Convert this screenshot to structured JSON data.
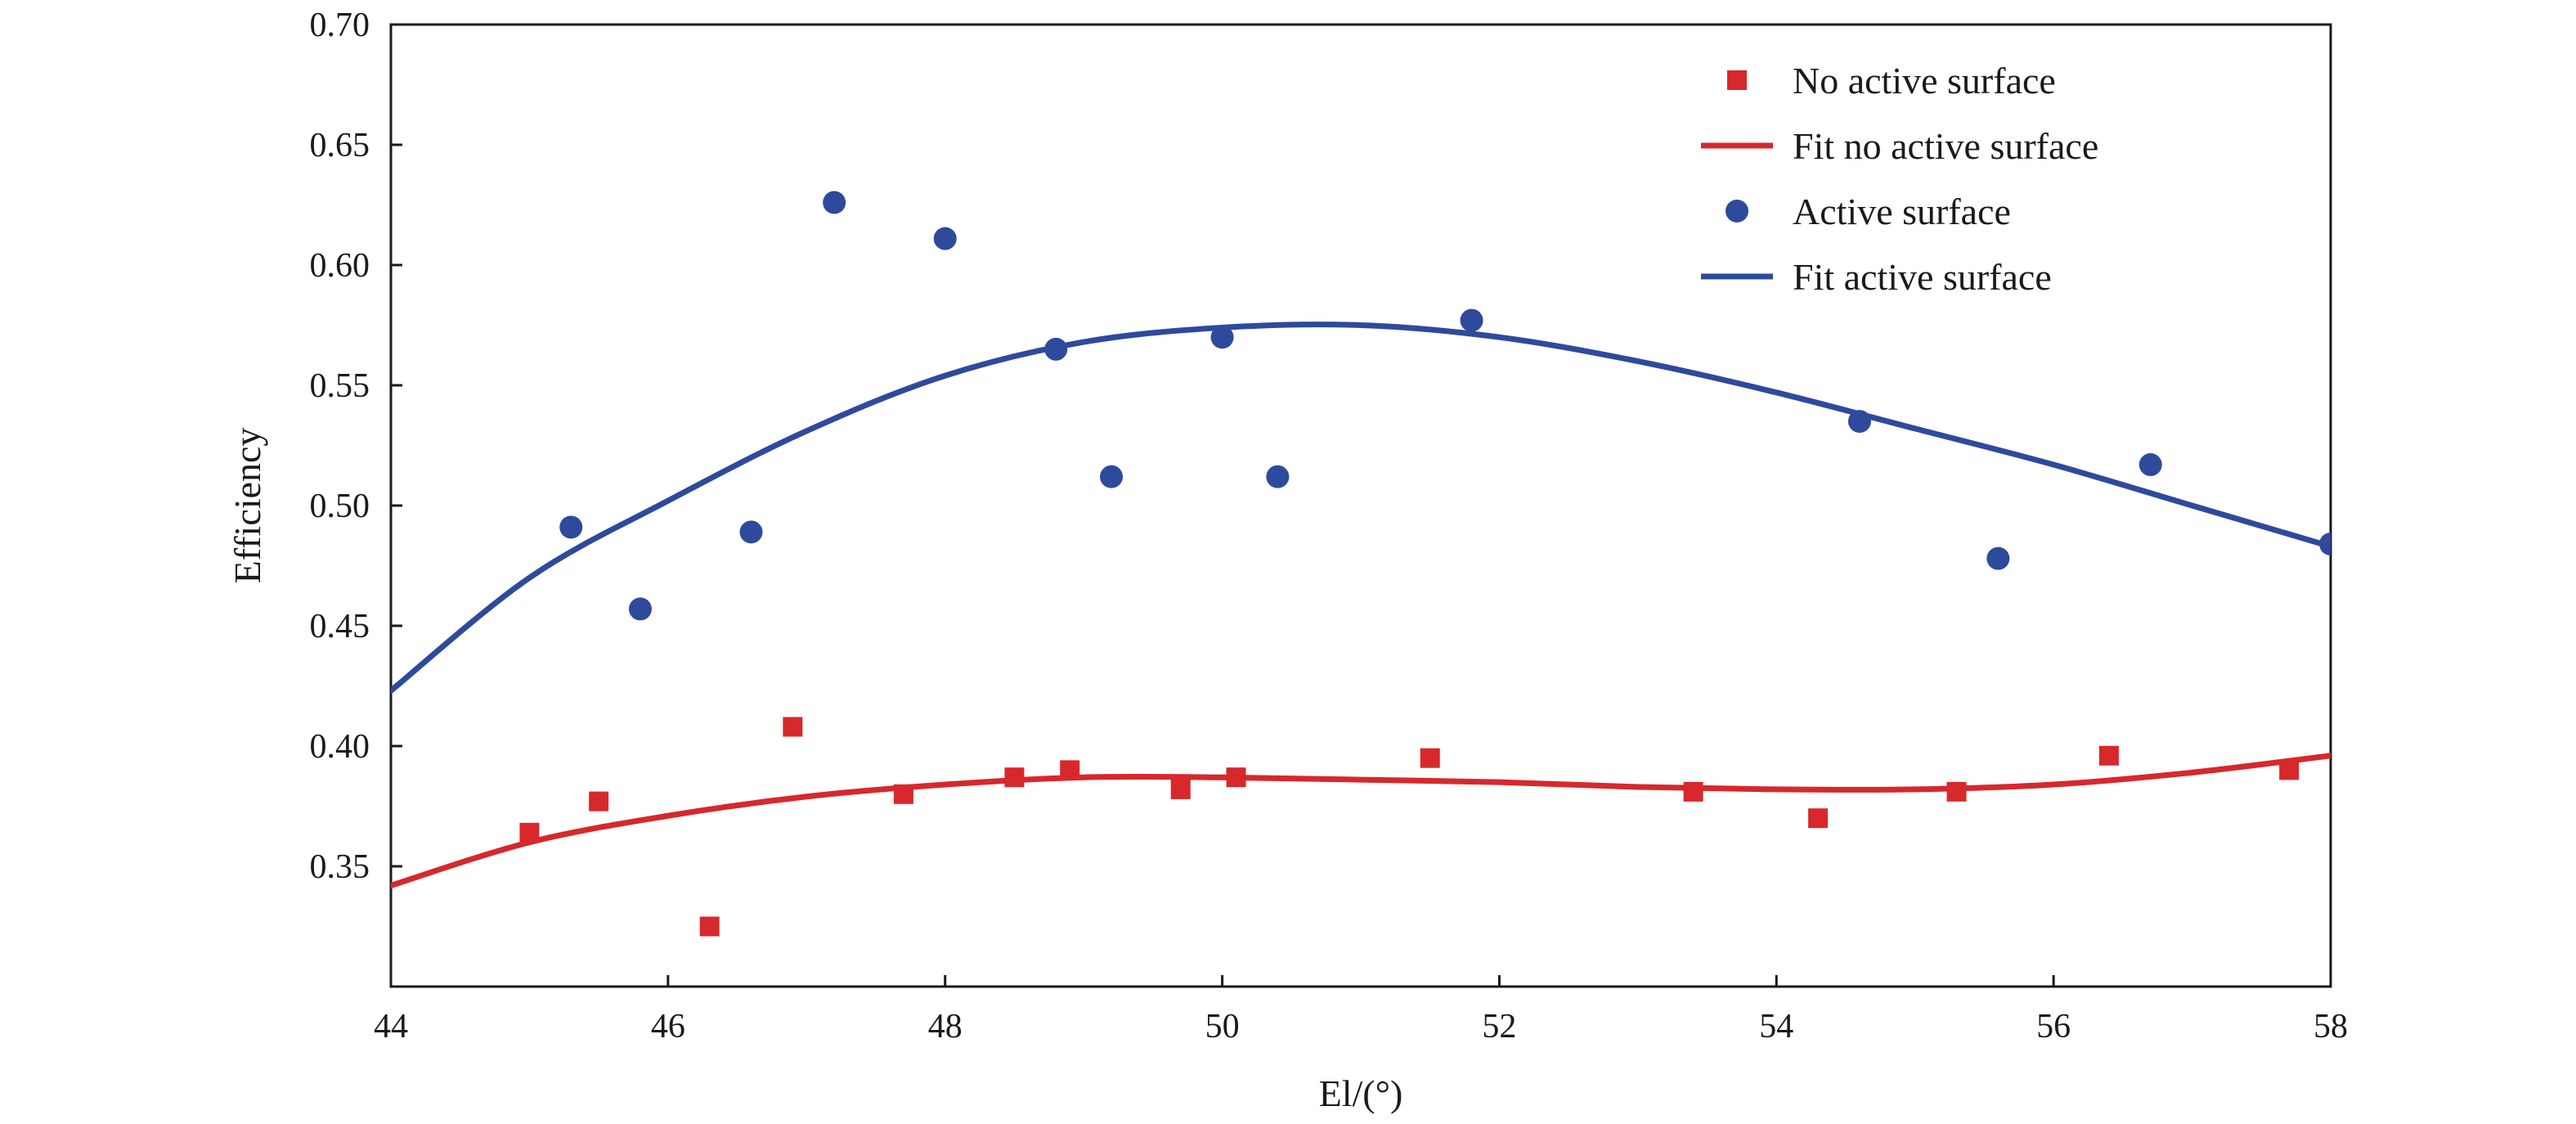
{
  "chart_data": {
    "type": "scatter",
    "xlabel": "El/(°)",
    "ylabel": "Efficiency",
    "xlim": [
      44,
      58
    ],
    "ylim": [
      0.3,
      0.7
    ],
    "x_ticks": [
      44,
      46,
      48,
      50,
      52,
      54,
      56,
      58
    ],
    "y_ticks": [
      0.35,
      0.4,
      0.45,
      0.5,
      0.55,
      0.6,
      0.65,
      0.7
    ],
    "x_tick_labels": [
      "44",
      "46",
      "48",
      "50",
      "52",
      "54",
      "56",
      "58"
    ],
    "y_tick_labels": [
      "0.35",
      "0.40",
      "0.45",
      "0.50",
      "0.55",
      "0.60",
      "0.65",
      "0.70"
    ],
    "grid": false,
    "legend_position": "top-right",
    "series": [
      {
        "name": "No active surface",
        "kind": "scatter",
        "marker": "square",
        "color": "#d7282c",
        "points": [
          [
            45.0,
            0.364
          ],
          [
            45.5,
            0.377
          ],
          [
            46.3,
            0.325
          ],
          [
            46.9,
            0.408
          ],
          [
            47.7,
            0.38
          ],
          [
            48.5,
            0.387
          ],
          [
            48.9,
            0.39
          ],
          [
            49.7,
            0.382
          ],
          [
            50.1,
            0.387
          ],
          [
            51.5,
            0.395
          ],
          [
            53.4,
            0.381
          ],
          [
            54.3,
            0.37
          ],
          [
            55.3,
            0.381
          ],
          [
            56.4,
            0.396
          ],
          [
            57.7,
            0.39
          ]
        ]
      },
      {
        "name": "Fit no active surface",
        "kind": "line",
        "color": "#d7282c",
        "points": [
          [
            44,
            0.342
          ],
          [
            45,
            0.36
          ],
          [
            46,
            0.371
          ],
          [
            47,
            0.379
          ],
          [
            48,
            0.384
          ],
          [
            49,
            0.387
          ],
          [
            50,
            0.387
          ],
          [
            51,
            0.386
          ],
          [
            52,
            0.385
          ],
          [
            53,
            0.383
          ],
          [
            54,
            0.382
          ],
          [
            55,
            0.382
          ],
          [
            56,
            0.384
          ],
          [
            57,
            0.389
          ],
          [
            58,
            0.396
          ]
        ]
      },
      {
        "name": "Active surface",
        "kind": "scatter",
        "marker": "circle",
        "color": "#2e4a9c",
        "points": [
          [
            45.3,
            0.491
          ],
          [
            45.8,
            0.457
          ],
          [
            46.6,
            0.489
          ],
          [
            47.2,
            0.626
          ],
          [
            48.0,
            0.611
          ],
          [
            48.8,
            0.565
          ],
          [
            49.2,
            0.512
          ],
          [
            50.0,
            0.57
          ],
          [
            50.4,
            0.512
          ],
          [
            51.8,
            0.577
          ],
          [
            54.6,
            0.535
          ],
          [
            55.6,
            0.478
          ],
          [
            56.7,
            0.517
          ],
          [
            58.0,
            0.484
          ]
        ]
      },
      {
        "name": "Fit active surface",
        "kind": "line",
        "color": "#2e4a9c",
        "points": [
          [
            44,
            0.423
          ],
          [
            45,
            0.47
          ],
          [
            46,
            0.502
          ],
          [
            47,
            0.531
          ],
          [
            48,
            0.554
          ],
          [
            49,
            0.568
          ],
          [
            50,
            0.574
          ],
          [
            51,
            0.575
          ],
          [
            52,
            0.57
          ],
          [
            53,
            0.56
          ],
          [
            54,
            0.547
          ],
          [
            55,
            0.532
          ],
          [
            56,
            0.517
          ],
          [
            57,
            0.5
          ],
          [
            58,
            0.483
          ]
        ]
      }
    ]
  }
}
